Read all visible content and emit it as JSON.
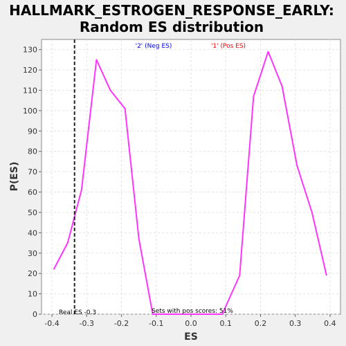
{
  "chart_data": {
    "type": "line",
    "title_line1": "HALLMARK_ESTROGEN_RESPONSE_EARLY:",
    "title_line2": "Random ES distribution",
    "xlabel": "ES",
    "ylabel": "P(ES)",
    "xlim": [
      -0.43,
      0.43
    ],
    "ylim": [
      0,
      135
    ],
    "xticks": [
      -0.4,
      -0.3,
      -0.2,
      -0.1,
      0.0,
      0.1,
      0.2,
      0.3,
      0.4
    ],
    "xtick_labels": [
      "-0.4",
      "-0.3",
      "-0.2",
      "-0.1",
      "0.0",
      "0.1",
      "0.2",
      "0.3",
      "0.4"
    ],
    "yticks": [
      0,
      10,
      20,
      30,
      40,
      50,
      60,
      70,
      80,
      90,
      100,
      110,
      120,
      130
    ],
    "ytick_labels": [
      "0",
      "10",
      "20",
      "30",
      "40",
      "50",
      "60",
      "70",
      "80",
      "90",
      "100",
      "110",
      "120",
      "130"
    ],
    "grid": true,
    "line_color": "#ff33ff",
    "neg_label": "'2' (Neg ES)",
    "neg_color": "#0000ee",
    "pos_label": "'1' (Pos ES)",
    "pos_color": "#ee0000",
    "real_es_x": -0.335,
    "real_es_label": "Real ES -0.3",
    "pos_scores_label": "Sets with pos scores: 51%",
    "series": [
      {
        "x": [
          -0.395,
          -0.355,
          -0.315,
          -0.272,
          -0.232,
          -0.19,
          -0.15,
          -0.11,
          -0.07,
          -0.03,
          0.01,
          0.05,
          0.09,
          0.14,
          0.18,
          0.222,
          0.262,
          0.305,
          0.348,
          0.39
        ],
        "y": [
          22,
          35,
          61,
          125,
          110,
          101,
          37,
          0,
          0,
          0,
          0,
          0,
          0,
          19,
          107,
          129,
          112,
          73,
          50,
          19
        ]
      }
    ]
  }
}
